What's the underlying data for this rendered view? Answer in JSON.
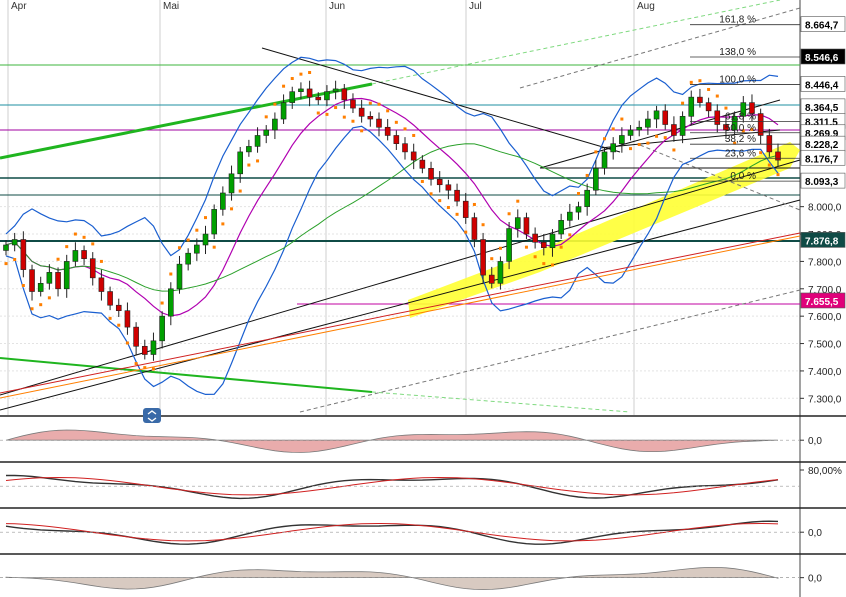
{
  "chart_data": [
    {
      "type": "line",
      "panel": "price",
      "title": "",
      "months": [
        "Apr",
        "Mai",
        "Jun",
        "Jul",
        "Aug"
      ],
      "y_ticks": [
        "8.000,0",
        "7.900,0",
        "7.800,0",
        "7.700,0",
        "7.600,0",
        "7.500,0",
        "7.400,0",
        "7.300,0"
      ],
      "ylim": [
        7250,
        8700
      ],
      "price_labels": [
        {
          "text": "8.664,7",
          "value": 8664.7,
          "bg": "#ffffff",
          "fg": "#000000"
        },
        {
          "text": "8.546,6",
          "value": 8546.6,
          "bg": "#000000",
          "fg": "#ffffff"
        },
        {
          "text": "8.446,4",
          "value": 8446.4,
          "bg": "#ffffff",
          "fg": "#000000"
        },
        {
          "text": "8.364,5",
          "value": 8364.5,
          "bg": "#ffffff",
          "fg": "#000000"
        },
        {
          "text": "8.311,5",
          "value": 8311.5,
          "bg": "#ffffff",
          "fg": "#000000"
        },
        {
          "text": "8.269,9",
          "value": 8269.9,
          "bg": "#ffffff",
          "fg": "#000000"
        },
        {
          "text": "8.228,2",
          "value": 8228.2,
          "bg": "#ffffff",
          "fg": "#000000"
        },
        {
          "text": "8.176,7",
          "value": 8176.7,
          "bg": "#ffffff",
          "fg": "#000000"
        },
        {
          "text": "8.093,3",
          "value": 8093.3,
          "bg": "#ffffff",
          "fg": "#000000"
        },
        {
          "text": "7.876,8",
          "value": 7876.8,
          "bg": "#0f4b46",
          "fg": "#ffffff"
        },
        {
          "text": "7.655,5",
          "value": 7655.5,
          "bg": "#e0007a",
          "fg": "#ffffff"
        }
      ],
      "fib_levels": [
        {
          "label": "161,8 %",
          "value": 8664.7
        },
        {
          "label": "138,0 %",
          "value": 8546.6
        },
        {
          "label": "100,0 %",
          "value": 8446.4
        },
        {
          "label": "61,8 %",
          "value": 8311.5
        },
        {
          "label": "50,0 %",
          "value": 8269.9
        },
        {
          "label": "38,2 %",
          "value": 8228.2
        },
        {
          "label": "23,6 %",
          "value": 8176.7
        },
        {
          "label": "0,0 %",
          "value": 8093.3
        }
      ],
      "series": [
        {
          "name": "close",
          "values": [
            7860,
            7880,
            7770,
            7690,
            7720,
            7760,
            7700,
            7800,
            7840,
            7810,
            7740,
            7690,
            7640,
            7620,
            7560,
            7490,
            7460,
            7510,
            7600,
            7700,
            7790,
            7830,
            7860,
            7900,
            7990,
            8050,
            8120,
            8200,
            8220,
            8260,
            8280,
            8320,
            8380,
            8420,
            8430,
            8400,
            8390,
            8420,
            8430,
            8390,
            8360,
            8330,
            8320,
            8290,
            8260,
            8230,
            8200,
            8170,
            8140,
            8100,
            8080,
            8060,
            8020,
            7960,
            7880,
            7750,
            7720,
            7800,
            7920,
            7960,
            7900,
            7870,
            7850,
            7900,
            7950,
            7980,
            8000,
            8060,
            8140,
            8200,
            8230,
            8260,
            8280,
            8290,
            8320,
            8350,
            8300,
            8260,
            8330,
            8400,
            8380,
            8350,
            8300,
            8280,
            8330,
            8380,
            8340,
            8260,
            8200,
            8170
          ]
        },
        {
          "name": "upper band",
          "values": []
        },
        {
          "name": "lower band",
          "values": []
        }
      ],
      "legend": "none"
    },
    {
      "type": "area",
      "panel": "oscillator-1",
      "ticks": [
        "0,0"
      ]
    },
    {
      "type": "line",
      "panel": "oscillator-2",
      "ticks": [
        "80,00%"
      ]
    },
    {
      "type": "line",
      "panel": "oscillator-3",
      "ticks": [
        "0,0"
      ]
    },
    {
      "type": "area",
      "panel": "oscillator-4",
      "ticks": [
        "0,0"
      ]
    }
  ],
  "colors": {
    "up": "#00a000",
    "down": "#d00000",
    "bollinger": "#1a5fd0",
    "magenta": "#b000b0",
    "green_trend": "#1fb51f",
    "orange": "#ff7f00",
    "yellow_channel": "#ffff00",
    "dark_teal": "#0f4b46",
    "pink": "#e0007a"
  }
}
